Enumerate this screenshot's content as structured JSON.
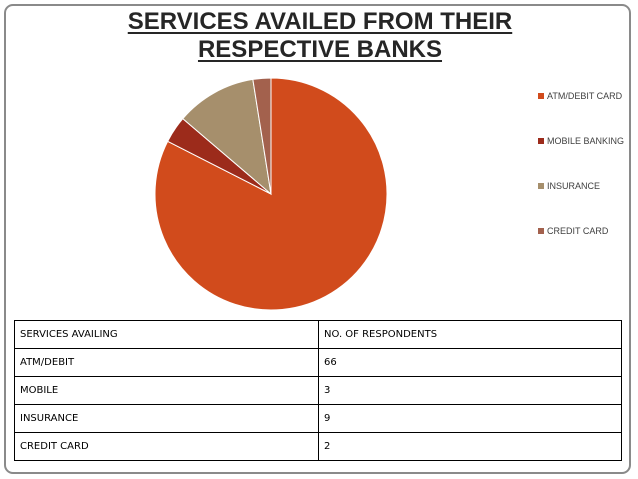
{
  "title_line1": "SERVICES AVAILED FROM THEIR",
  "title_line2": "RESPECTIVE BANKS",
  "chart_data": {
    "type": "pie",
    "title": "SERVICES AVAILED FROM THEIR RESPECTIVE BANKS",
    "categories": [
      "ATM/DEBIT CARD",
      "MOBILE BANKING",
      "INSURANCE",
      "CREDIT CARD"
    ],
    "values": [
      66,
      3,
      9,
      2
    ],
    "colors": [
      "#d14b1c",
      "#9c2b1b",
      "#a68f6c",
      "#a3614d"
    ],
    "legend_position": "right",
    "start_angle": "top",
    "direction": "clockwise"
  },
  "table": {
    "headers": [
      "SERVICES AVAILING",
      "NO. OF RESPONDENTS"
    ],
    "rows": [
      [
        "ATM/DEBIT",
        "66"
      ],
      [
        "MOBILE",
        "3"
      ],
      [
        "INSURANCE",
        "9"
      ],
      [
        "CREDIT CARD",
        "2"
      ]
    ]
  }
}
